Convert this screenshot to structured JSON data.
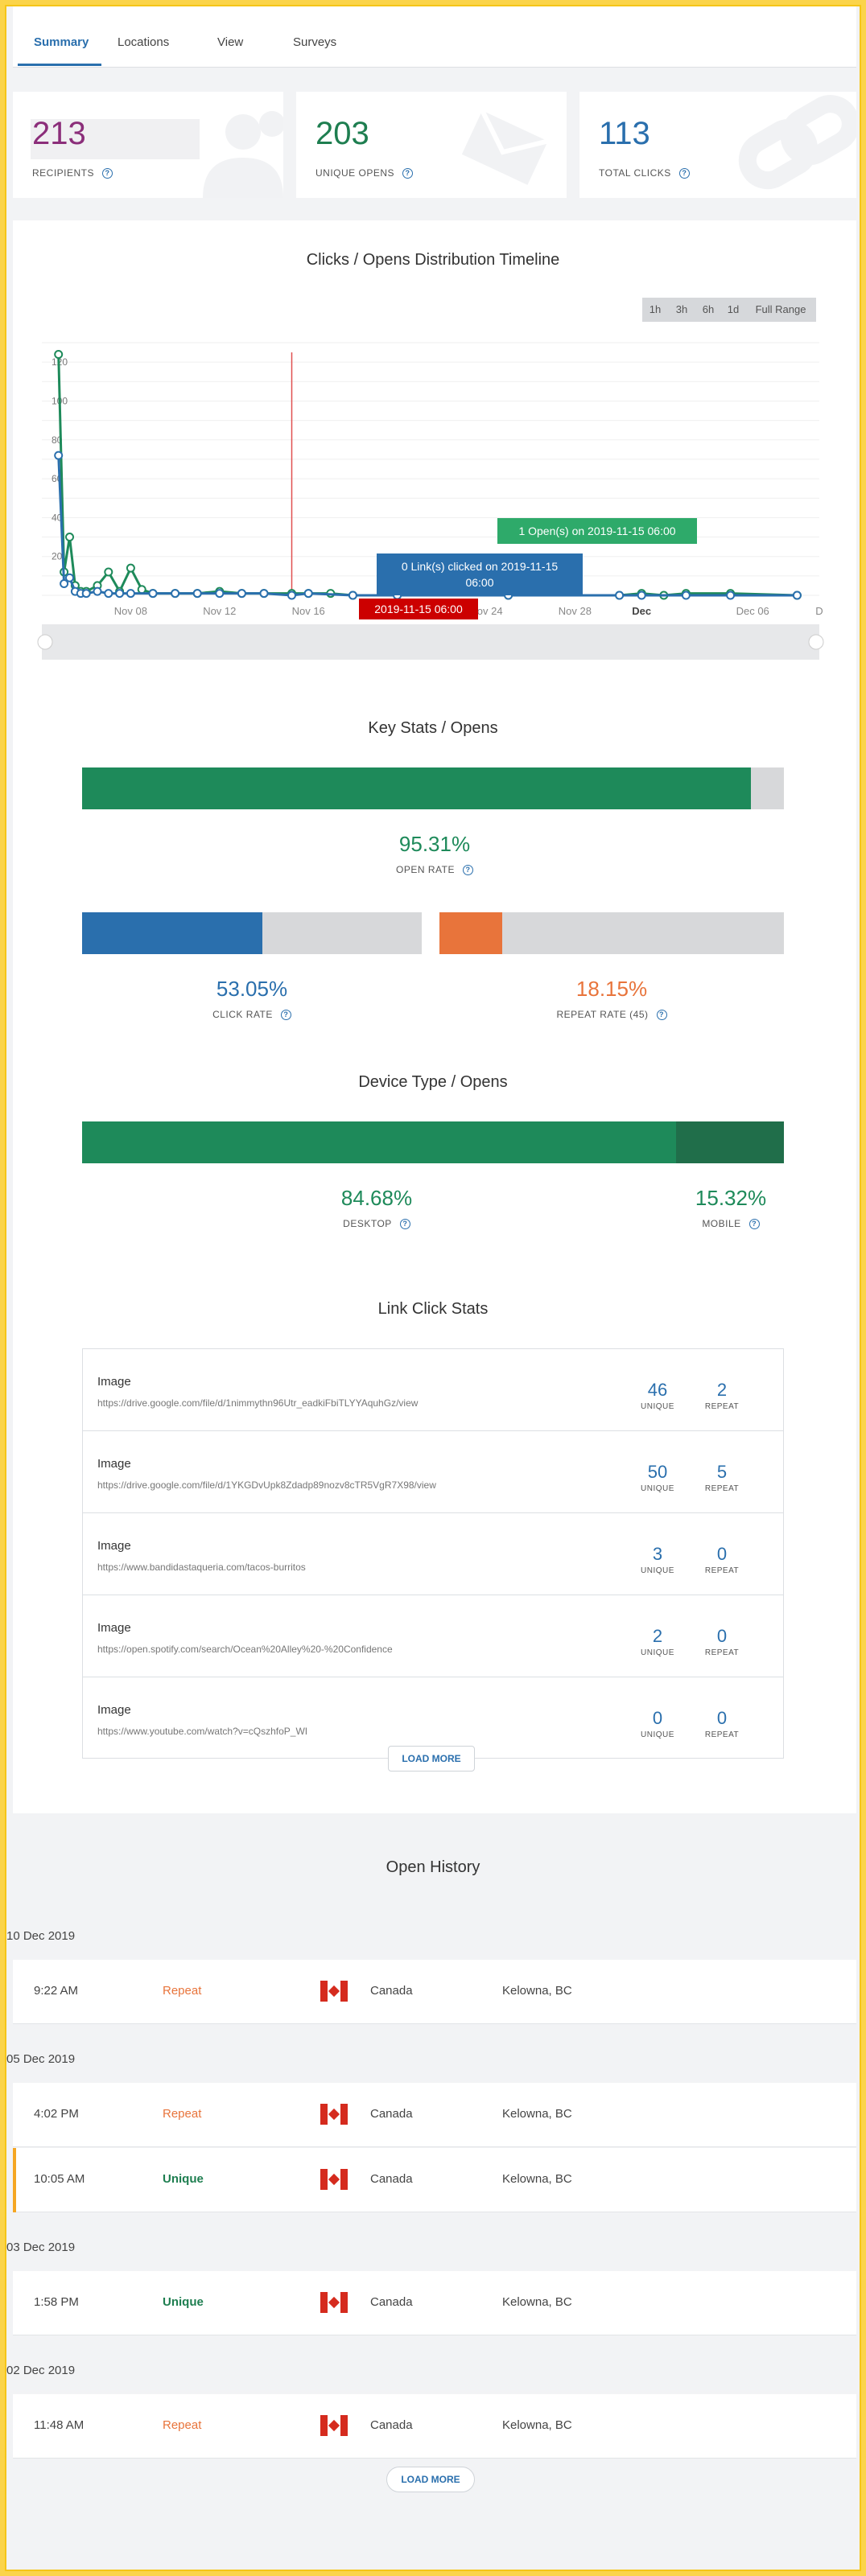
{
  "tabs": [
    {
      "label": "Summary",
      "active": true
    },
    {
      "label": "Locations"
    },
    {
      "label": "View"
    },
    {
      "label": "Surveys"
    }
  ],
  "stats": [
    {
      "value": "213",
      "label": "RECIPIENTS",
      "color": "#8b2e7a"
    },
    {
      "value": "203",
      "label": "UNIQUE OPENS",
      "color": "#1e7e50"
    },
    {
      "value": "113",
      "label": "TOTAL CLICKS",
      "color": "#2a6fad"
    }
  ],
  "timeline": {
    "title": "Clicks / Opens Distribution Timeline",
    "ranges": [
      "1h",
      "3h",
      "6h",
      "1d",
      "Full Range"
    ],
    "tooltip_open": "1 Open(s) on 2019-11-15 06:00",
    "tooltip_click_line1": "0 Link(s) clicked on 2019-11-15",
    "tooltip_click_line2": "06:00",
    "crosshair_label": "2019-11-15 06:00"
  },
  "chart_data": {
    "type": "line",
    "title": "Clicks / Opens Distribution Timeline",
    "x_ticks": [
      "Nov 08",
      "Nov 12",
      "Nov 16",
      "Nov 20",
      "Nov 24",
      "Nov 28",
      "Dec",
      "Dec 06",
      "D"
    ],
    "y_ticks": [
      "20",
      "40",
      "60",
      "80",
      "100",
      "120"
    ],
    "ylim": [
      0,
      130
    ],
    "series": [
      {
        "name": "Opens",
        "color": "#1e8a5a",
        "x": [
          "Nov 04 18:00",
          "Nov 05 00:00",
          "Nov 05 06:00",
          "Nov 05 12:00",
          "Nov 05 18:00",
          "Nov 06 00:00",
          "Nov 06 12:00",
          "Nov 07 00:00",
          "Nov 07 12:00",
          "Nov 08 00:00",
          "Nov 08 12:00",
          "Nov 09 00:00",
          "Nov 10 00:00",
          "Nov 11 00:00",
          "Nov 12 00:00",
          "Nov 13 00:00",
          "Nov 14 00:00",
          "Nov 15 06:00",
          "Nov 16 00:00",
          "Nov 17 00:00",
          "Nov 18 00:00",
          "Nov 20 00:00",
          "Nov 25 00:00",
          "Nov 30 00:00",
          "Dec 01 00:00",
          "Dec 02 00:00",
          "Dec 03 00:00",
          "Dec 05 00:00",
          "Dec 08 00:00"
        ],
        "y": [
          124,
          12,
          30,
          5,
          2,
          2,
          5,
          12,
          2,
          14,
          3,
          1,
          1,
          1,
          2,
          1,
          1,
          1,
          1,
          1,
          0,
          0,
          0,
          0,
          1,
          0,
          1,
          1,
          0
        ]
      },
      {
        "name": "Clicks",
        "color": "#2a6fad",
        "x": [
          "Nov 04 18:00",
          "Nov 05 00:00",
          "Nov 05 06:00",
          "Nov 05 12:00",
          "Nov 05 18:00",
          "Nov 06 00:00",
          "Nov 06 12:00",
          "Nov 07 00:00",
          "Nov 07 12:00",
          "Nov 08 00:00",
          "Nov 09 00:00",
          "Nov 10 00:00",
          "Nov 11 00:00",
          "Nov 12 00:00",
          "Nov 13 00:00",
          "Nov 14 00:00",
          "Nov 15 06:00",
          "Nov 16 00:00",
          "Nov 18 00:00",
          "Nov 20 00:00",
          "Nov 25 00:00",
          "Nov 30 00:00",
          "Dec 01 00:00",
          "Dec 03 00:00",
          "Dec 05 00:00",
          "Dec 08 00:00"
        ],
        "y": [
          72,
          6,
          9,
          2,
          1,
          1,
          2,
          1,
          1,
          1,
          1,
          1,
          1,
          1,
          1,
          1,
          0,
          1,
          0,
          0,
          0,
          0,
          0,
          0,
          0,
          0
        ]
      }
    ]
  },
  "key_stats": {
    "title": "Key Stats / Opens",
    "open_rate": {
      "value": "95.31%",
      "label": "OPEN RATE",
      "fraction": 0.9531,
      "color": "#1e8a5a"
    },
    "click_rate": {
      "value": "53.05%",
      "label": "CLICK RATE",
      "fraction": 0.5305,
      "color": "#2a6fad"
    },
    "repeat_rate": {
      "value": "18.15%",
      "label": "REPEAT RATE (45)",
      "fraction": 0.1815,
      "color": "#e8743b"
    }
  },
  "device": {
    "title": "Device Type / Opens",
    "desktop": {
      "value": "84.68%",
      "label": "DESKTOP",
      "fraction": 0.8468
    },
    "mobile": {
      "value": "15.32%",
      "label": "MOBILE"
    }
  },
  "links": {
    "title": "Link Click Stats",
    "unique_label": "UNIQUE",
    "repeat_label": "REPEAT",
    "load_more": "LOAD MORE",
    "rows": [
      {
        "title": "Image",
        "url": "https://drive.google.com/file/d/1nimmythn96Utr_eadkiFbiTLYYAquhGz/view",
        "unique": "46",
        "repeat": "2"
      },
      {
        "title": "Image",
        "url": "https://drive.google.com/file/d/1YKGDvUpk8Zdadp89nozv8cTR5VgR7X98/view",
        "unique": "50",
        "repeat": "5"
      },
      {
        "title": "Image",
        "url": "https://www.bandidastaqueria.com/tacos-burritos",
        "unique": "3",
        "repeat": "0"
      },
      {
        "title": "Image",
        "url": "https://open.spotify.com/search/Ocean%20Alley%20-%20Confidence",
        "unique": "2",
        "repeat": "0"
      },
      {
        "title": "Image",
        "url": "https://www.youtube.com/watch?v=cQszhfoP_WI",
        "unique": "0",
        "repeat": "0"
      }
    ]
  },
  "history": {
    "title": "Open History",
    "load_more": "LOAD MORE",
    "days": [
      {
        "date": "10 Dec 2019",
        "rows": [
          {
            "time": "9:22 AM",
            "kind": "Repeat",
            "country": "Canada",
            "city": "Kelowna, BC"
          }
        ]
      },
      {
        "date": "05 Dec 2019",
        "rows": [
          {
            "time": "4:02 PM",
            "kind": "Repeat",
            "country": "Canada",
            "city": "Kelowna, BC"
          },
          {
            "time": "10:05 AM",
            "kind": "Unique",
            "country": "Canada",
            "city": "Kelowna, BC",
            "highlight": true
          }
        ]
      },
      {
        "date": "03 Dec 2019",
        "rows": [
          {
            "time": "1:58 PM",
            "kind": "Unique",
            "country": "Canada",
            "city": "Kelowna, BC"
          }
        ]
      },
      {
        "date": "02 Dec 2019",
        "rows": [
          {
            "time": "11:48 AM",
            "kind": "Repeat",
            "country": "Canada",
            "city": "Kelowna, BC"
          }
        ]
      }
    ]
  }
}
